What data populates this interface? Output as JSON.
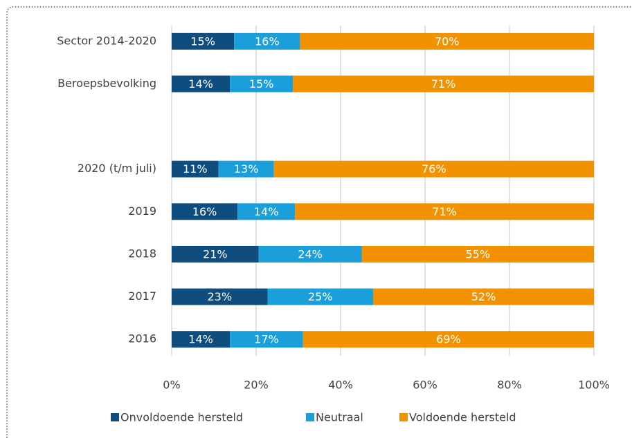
{
  "chart_data": {
    "type": "bar",
    "orientation": "horizontal",
    "stacked": true,
    "categories": [
      "Sector 2014-2020",
      "Beroepsbevolking",
      null,
      "2020 (t/m juli)",
      "2019",
      "2018",
      "2017",
      "2016"
    ],
    "series": [
      {
        "name": "Onvoldoende hersteld",
        "color": "#0e4d7e",
        "values": [
          14.8,
          13.8,
          null,
          11.1,
          15.6,
          20.6,
          22.7,
          13.8
        ],
        "value_labels": [
          "15%",
          "14%",
          null,
          "11%",
          "16%",
          "21%",
          "23%",
          "14%"
        ]
      },
      {
        "name": "Neutraal",
        "color": "#1a9fdb",
        "values": [
          15.6,
          14.9,
          null,
          13.1,
          13.6,
          24.4,
          25.0,
          17.3
        ],
        "value_labels": [
          "16%",
          "15%",
          null,
          "13%",
          "14%",
          "24%",
          "25%",
          "17%"
        ]
      },
      {
        "name": "Voldoende hersteld",
        "color": "#f39200",
        "values": [
          69.6,
          71.3,
          null,
          75.8,
          70.8,
          55.0,
          52.3,
          68.9
        ],
        "value_labels": [
          "70%",
          "71%",
          null,
          "76%",
          "71%",
          "55%",
          "52%",
          "69%"
        ]
      }
    ],
    "xlim": [
      0,
      100
    ],
    "xticks": [
      {
        "value": 0,
        "label": "0%"
      },
      {
        "value": 20,
        "label": "20%"
      },
      {
        "value": 40,
        "label": "40%"
      },
      {
        "value": 60,
        "label": "60%"
      },
      {
        "value": 80,
        "label": "80%"
      },
      {
        "value": 100,
        "label": "100%"
      }
    ],
    "grid": true,
    "legend": "bottom"
  }
}
